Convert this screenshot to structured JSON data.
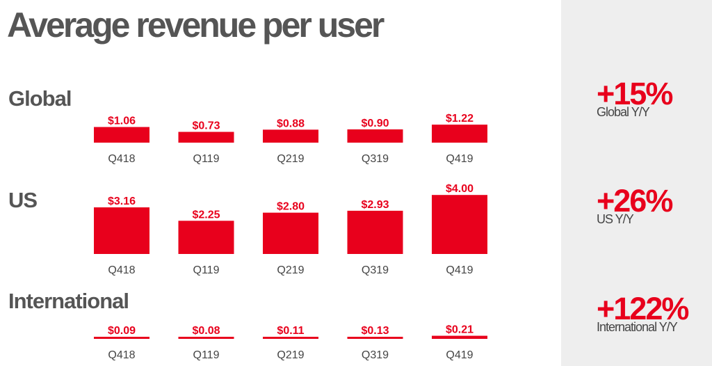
{
  "title": "Average revenue per user",
  "chart_data": [
    {
      "type": "bar",
      "section": "Global",
      "categories": [
        "Q418",
        "Q119",
        "Q219",
        "Q319",
        "Q419"
      ],
      "values": [
        1.06,
        0.73,
        0.88,
        0.9,
        1.22
      ],
      "value_labels": [
        "$1.06",
        "$0.73",
        "$0.88",
        "$0.90",
        "$1.22"
      ],
      "change": "+15%",
      "change_label": "Global Y/Y"
    },
    {
      "type": "bar",
      "section": "US",
      "categories": [
        "Q418",
        "Q119",
        "Q219",
        "Q319",
        "Q419"
      ],
      "values": [
        3.16,
        2.25,
        2.8,
        2.93,
        4.0
      ],
      "value_labels": [
        "$3.16",
        "$2.25",
        "$2.80",
        "$2.93",
        "$4.00"
      ],
      "change": "+26%",
      "change_label": "US Y/Y"
    },
    {
      "type": "bar",
      "section": "International",
      "categories": [
        "Q418",
        "Q119",
        "Q219",
        "Q319",
        "Q419"
      ],
      "values": [
        0.09,
        0.08,
        0.11,
        0.13,
        0.21
      ],
      "value_labels": [
        "$0.09",
        "$0.08",
        "$0.11",
        "$0.13",
        "$0.21"
      ],
      "change": "+122%",
      "change_label": "International Y/Y"
    }
  ],
  "colors": {
    "accent": "#e8001c",
    "title_text": "#555555",
    "side_panel": "#eeeeee"
  }
}
